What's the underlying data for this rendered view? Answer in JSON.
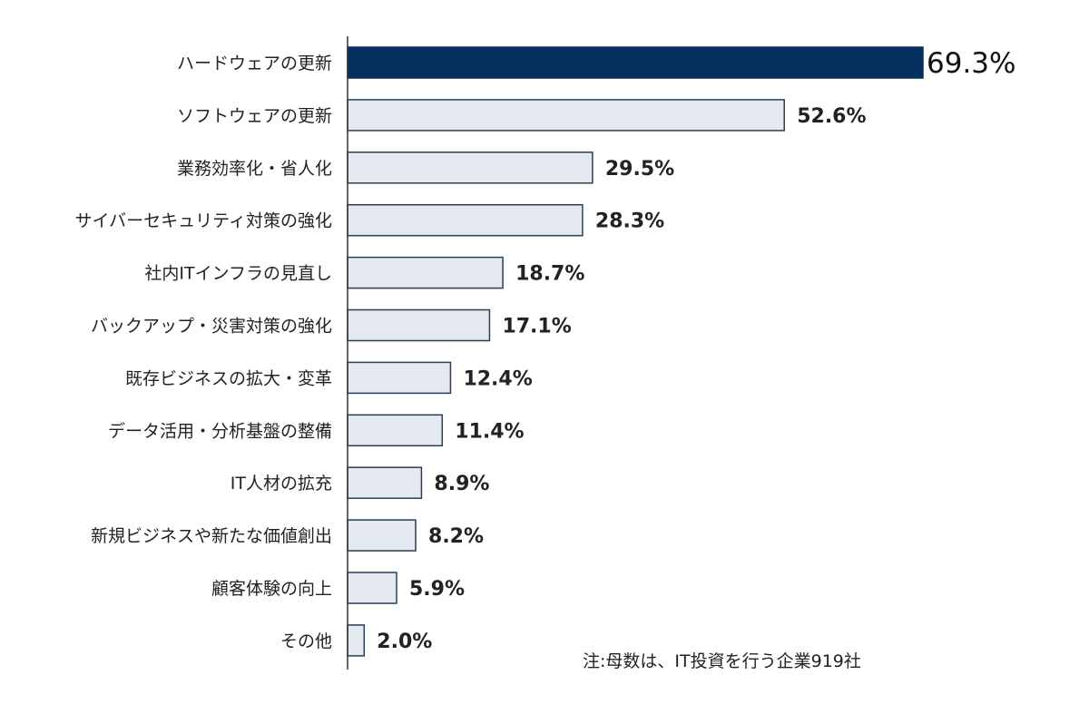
{
  "chart_data": {
    "type": "bar",
    "orientation": "horizontal",
    "categories": [
      "ハードウェアの更新",
      "ソフトウェアの更新",
      "業務効率化・省人化",
      "サイバーセキュリティ対策の強化",
      "社内ITインフラの見直し",
      "バックアップ・災害対策の強化",
      "既存ビジネスの拡大・変革",
      "データ活用・分析基盤の整備",
      "IT人材の拡充",
      "新規ビジネスや新たな価値創出",
      "顧客体験の向上",
      "その他"
    ],
    "values": [
      69.3,
      52.6,
      29.5,
      28.3,
      18.7,
      17.1,
      12.4,
      11.4,
      8.9,
      8.2,
      5.9,
      2.0
    ],
    "labels": [
      "69.3%",
      "52.6%",
      "29.5%",
      "28.3%",
      "18.7%",
      "17.1%",
      "12.4%",
      "11.4%",
      "8.9%",
      "8.2%",
      "5.9%",
      "2.0%"
    ],
    "unit": "%",
    "highlight_index": 0,
    "colors": {
      "highlight": "#03305f",
      "bar": "#e4e9ef",
      "bar_border": "#2a3f55",
      "axis": "#333333"
    },
    "grid": false,
    "legend": "none",
    "note": "注:母数は、IT投資を行う企業919社"
  }
}
